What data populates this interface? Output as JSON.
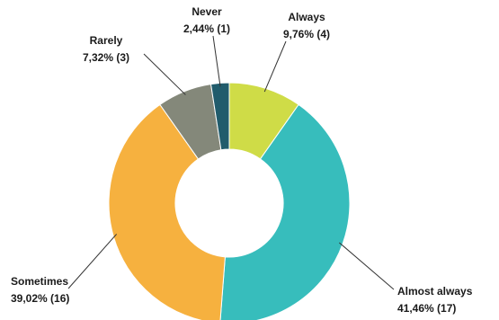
{
  "chart_data": {
    "type": "pie",
    "donut": true,
    "title": "",
    "legend": "none",
    "slices": [
      {
        "label": "Always",
        "value": 4,
        "percent_text": "9,76% (4)",
        "color": "#cfdc47"
      },
      {
        "label": "Almost always",
        "value": 17,
        "percent_text": "41,46% (17)",
        "color": "#37bdbc"
      },
      {
        "label": "Sometimes",
        "value": 16,
        "percent_text": "39,02% (16)",
        "color": "#f6b13f"
      },
      {
        "label": "Rarely",
        "value": 3,
        "percent_text": "7,32% (3)",
        "color": "#84887a"
      },
      {
        "label": "Never",
        "value": 1,
        "percent_text": "2,44% (1)",
        "color": "#215c6c"
      }
    ]
  }
}
